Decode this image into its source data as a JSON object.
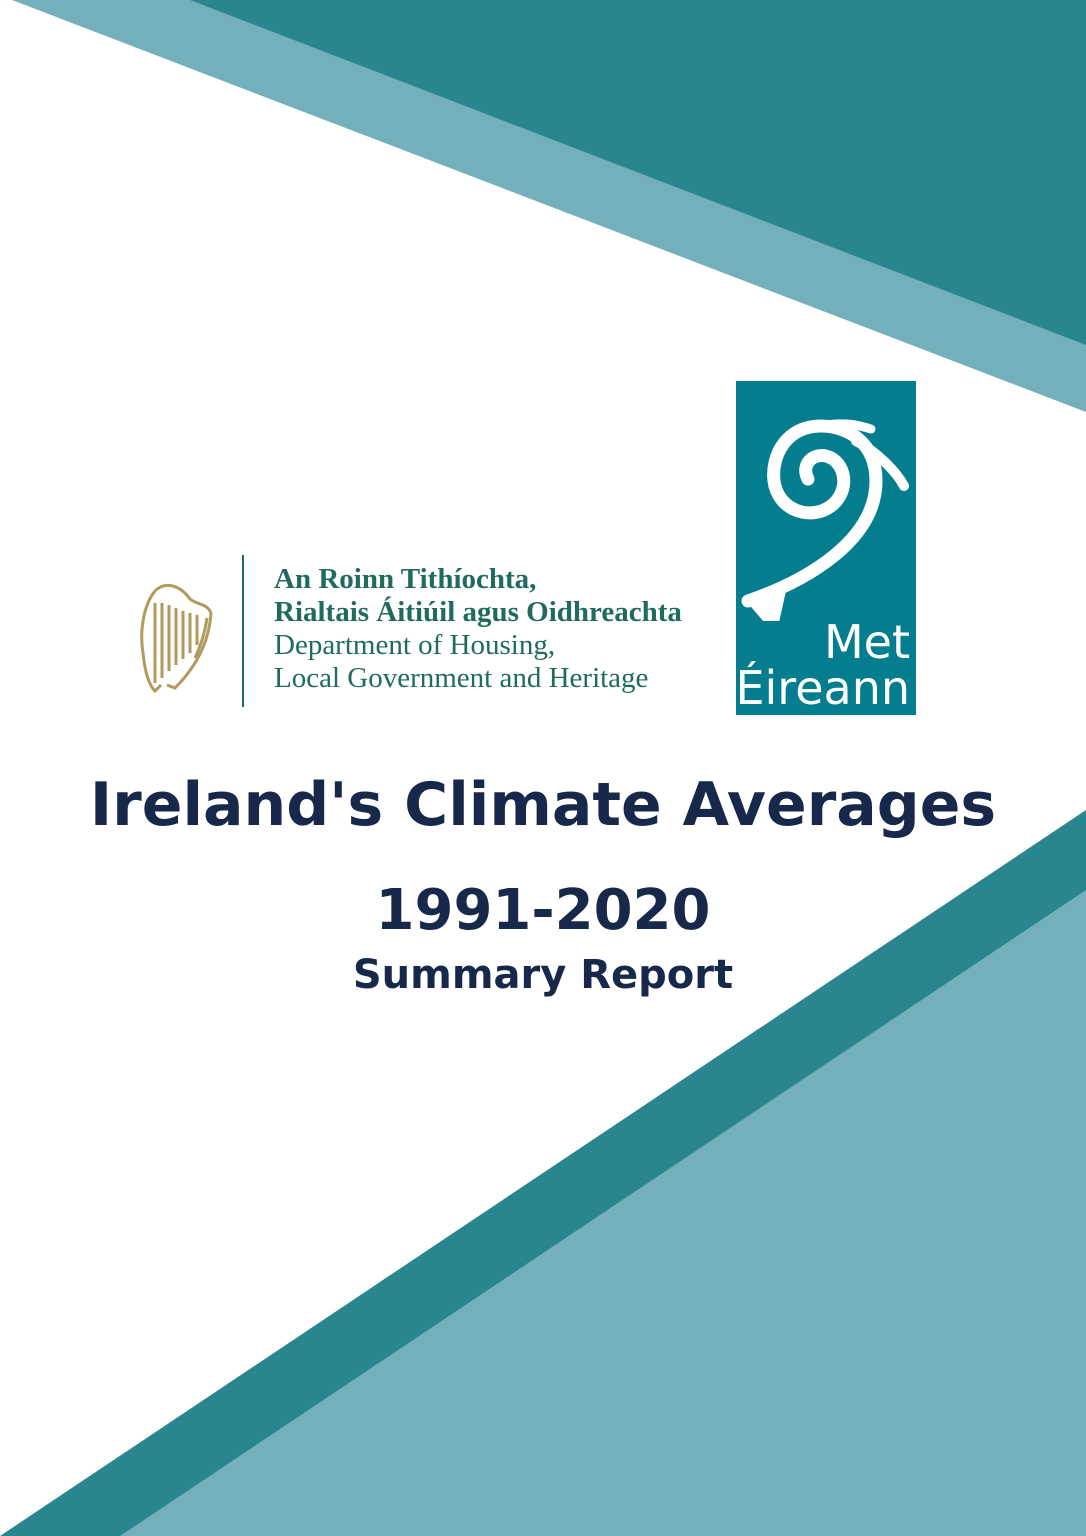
{
  "colors": {
    "dark_teal": "#2a868e",
    "light_teal": "#74b0bb",
    "title": "#17284a",
    "gov_green": "#1f6b5d",
    "met_brand": "#047d8f",
    "harp_gold": "#b09a5e"
  },
  "government_logo": {
    "icon": "harp-icon",
    "lines": [
      "An Roinn Tithíochta,",
      "Rialtais Áitiúil agus Oidhreachta",
      "Department of Housing,",
      "Local Government and Heritage"
    ]
  },
  "met_logo": {
    "icon": "spiral-wave-icon",
    "line1": "Met",
    "line2": "Éireann"
  },
  "title": "Ireland's Climate Averages",
  "years": "1991-2020",
  "subtitle": "Summary Report"
}
